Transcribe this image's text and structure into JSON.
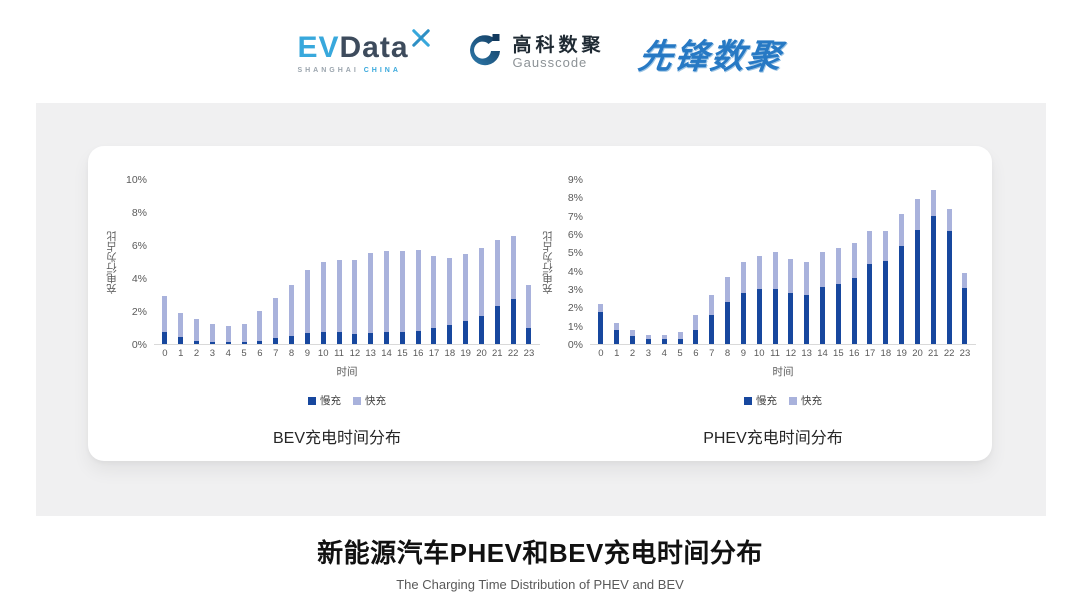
{
  "header": {
    "evdata": {
      "part1": "EV",
      "part2": "Data",
      "sub1": "SHANGHAI",
      "sub2": "CHINA"
    },
    "gausscode": {
      "name_cn": "高科数聚",
      "name_en": "Gausscode"
    },
    "pioneer": {
      "name": "先锋数聚"
    }
  },
  "colors": {
    "slow_charge": "#17479E",
    "fast_charge": "#A9B2DC",
    "axis_text": "#595959",
    "axis_line": "#D9D9D9",
    "panel_bg": "#F0F0F1",
    "evdata_blue": "#38A8DC",
    "evdata_dark": "#3D4B5C",
    "pioneer_blue": "#2779C4"
  },
  "chart_data": [
    {
      "type": "bar",
      "stacked": true,
      "title": "BEV充电时间分布",
      "xlabel": "时间",
      "ylabel": "充电行为占比",
      "unit": "%",
      "ylim": [
        0,
        10
      ],
      "ytick_step": 2,
      "grid": false,
      "legend_position": "bottom",
      "categories": [
        "0",
        "1",
        "2",
        "3",
        "4",
        "5",
        "6",
        "7",
        "8",
        "9",
        "10",
        "11",
        "12",
        "13",
        "14",
        "15",
        "16",
        "17",
        "18",
        "19",
        "20",
        "21",
        "22",
        "23"
      ],
      "series": [
        {
          "name": "慢充",
          "color": "#17479E",
          "values": [
            0.7,
            0.4,
            0.2,
            0.1,
            0.1,
            0.1,
            0.2,
            0.35,
            0.5,
            0.65,
            0.7,
            0.7,
            0.6,
            0.65,
            0.7,
            0.7,
            0.8,
            0.95,
            1.15,
            1.4,
            1.7,
            2.3,
            2.7,
            0.95
          ]
        },
        {
          "name": "快充",
          "color": "#A9B2DC",
          "values": [
            2.2,
            1.5,
            1.3,
            1.1,
            1.0,
            1.1,
            1.8,
            2.45,
            3.05,
            3.85,
            4.3,
            4.4,
            4.5,
            4.85,
            4.95,
            4.95,
            4.9,
            4.4,
            4.05,
            4.05,
            4.1,
            4.0,
            3.85,
            2.6
          ]
        }
      ]
    },
    {
      "type": "bar",
      "stacked": true,
      "title": "PHEV充电时间分布",
      "xlabel": "时间",
      "ylabel": "充电行为占比",
      "unit": "%",
      "ylim": [
        0,
        9
      ],
      "ytick_step": 1,
      "grid": false,
      "legend_position": "bottom",
      "categories": [
        "0",
        "1",
        "2",
        "3",
        "4",
        "5",
        "6",
        "7",
        "8",
        "9",
        "10",
        "11",
        "12",
        "13",
        "14",
        "15",
        "16",
        "17",
        "18",
        "19",
        "20",
        "21",
        "22",
        "23"
      ],
      "series": [
        {
          "name": "慢充",
          "color": "#17479E",
          "values": [
            1.75,
            0.75,
            0.45,
            0.25,
            0.25,
            0.3,
            0.75,
            1.6,
            2.3,
            2.8,
            3.0,
            3.0,
            2.8,
            2.65,
            3.1,
            3.3,
            3.6,
            4.35,
            4.55,
            5.35,
            6.2,
            7.0,
            6.15,
            3.05
          ]
        },
        {
          "name": "快充",
          "color": "#A9B2DC",
          "values": [
            0.45,
            0.4,
            0.3,
            0.25,
            0.25,
            0.35,
            0.85,
            1.1,
            1.35,
            1.7,
            1.8,
            2.0,
            1.85,
            1.8,
            1.9,
            1.95,
            1.9,
            1.8,
            1.6,
            1.75,
            1.7,
            1.4,
            1.2,
            0.8
          ]
        }
      ]
    }
  ],
  "footer": {
    "title": "新能源汽车PHEV和BEV充电时间分布",
    "subtitle": "The Charging Time Distribution of PHEV and BEV"
  }
}
